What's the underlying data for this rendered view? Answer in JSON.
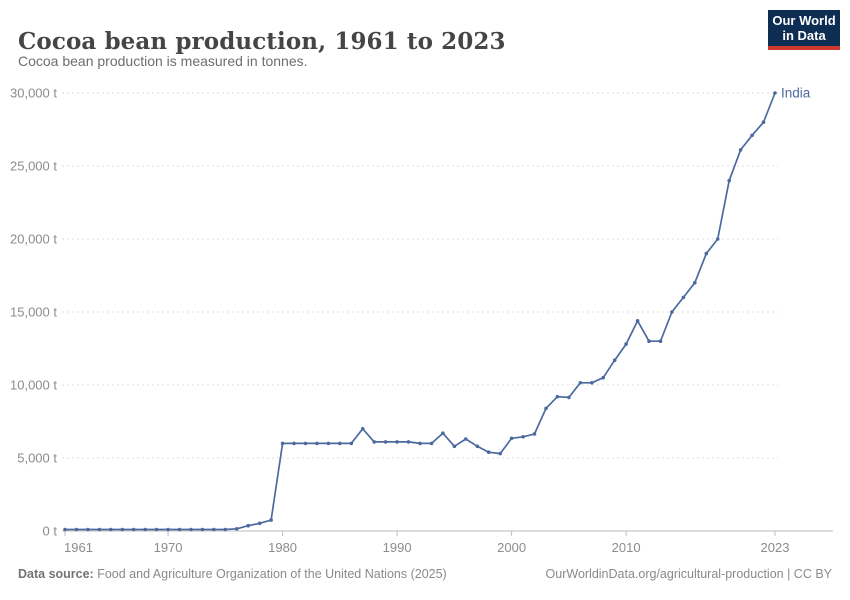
{
  "header": {
    "title": "Cocoa bean production, 1961 to 2023",
    "subtitle": "Cocoa bean production is measured in tonnes.",
    "logo": {
      "line1": "Our World",
      "line2": "in Data",
      "bg_color": "#0d2d52",
      "stripe_color": "#cf3a2f"
    }
  },
  "chart_data": {
    "type": "line",
    "title": "Cocoa bean production, 1961 to 2023",
    "unit": "tonnes",
    "xlabel": "",
    "ylabel": "",
    "xlim": [
      1961,
      2023
    ],
    "ylim": [
      0,
      30000
    ],
    "grid": "horizontal-dashed",
    "legend_position": "end-of-line-label",
    "x_ticks": [
      1961,
      1970,
      1980,
      1990,
      2000,
      2010,
      2023
    ],
    "y_ticks": [
      0,
      5000,
      10000,
      15000,
      20000,
      25000,
      30000
    ],
    "y_tick_labels": [
      "0 t",
      "5,000 t",
      "10,000 t",
      "15,000 t",
      "20,000 t",
      "25,000 t",
      "30,000 t"
    ],
    "series": [
      {
        "name": "India",
        "color": "#4c6a9e",
        "x": [
          1961,
          1962,
          1963,
          1964,
          1965,
          1966,
          1967,
          1968,
          1969,
          1970,
          1971,
          1972,
          1973,
          1974,
          1975,
          1976,
          1977,
          1978,
          1979,
          1980,
          1981,
          1982,
          1983,
          1984,
          1985,
          1986,
          1987,
          1988,
          1989,
          1990,
          1991,
          1992,
          1993,
          1994,
          1995,
          1996,
          1997,
          1998,
          1999,
          2000,
          2001,
          2002,
          2003,
          2004,
          2005,
          2006,
          2007,
          2008,
          2009,
          2010,
          2011,
          2012,
          2013,
          2014,
          2015,
          2016,
          2017,
          2018,
          2019,
          2020,
          2021,
          2022,
          2023
        ],
        "values": [
          100,
          100,
          100,
          100,
          100,
          100,
          100,
          100,
          100,
          100,
          100,
          100,
          100,
          100,
          100,
          150,
          360,
          530,
          750,
          6000,
          6000,
          6000,
          6000,
          6000,
          6000,
          6000,
          7000,
          6100,
          6100,
          6100,
          6100,
          6000,
          6000,
          6700,
          5800,
          6300,
          5800,
          5400,
          5300,
          6350,
          6450,
          6650,
          8400,
          9200,
          9150,
          10150,
          10150,
          10500,
          11700,
          12800,
          14400,
          13000,
          13000,
          15000,
          16000,
          17000,
          19000,
          20000,
          24000,
          26100,
          27100,
          28000,
          30000
        ]
      }
    ]
  },
  "footer": {
    "source_label": "Data source:",
    "source_text": " Food and Agriculture Organization of the United Nations (2025)",
    "credit": "OurWorldinData.org/agricultural-production | CC BY"
  }
}
